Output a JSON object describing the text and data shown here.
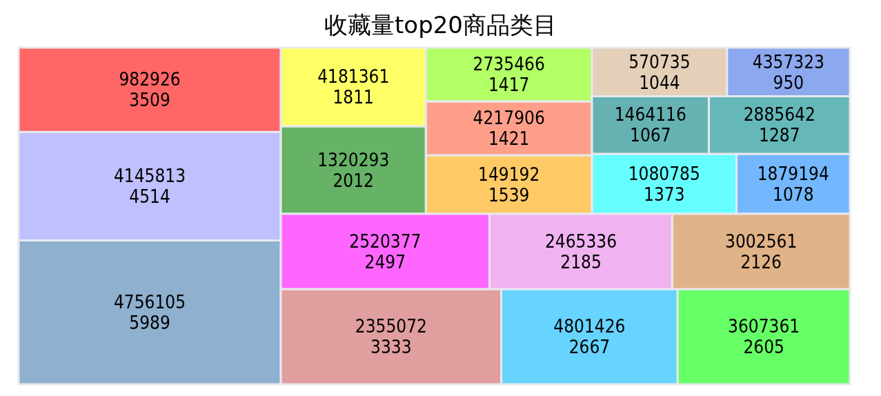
{
  "chart_data": {
    "type": "other",
    "title": "收藏量top20商品类目",
    "categories": [
      "4756105",
      "4145813",
      "982926",
      "2355072",
      "4801426",
      "3607361",
      "2520377",
      "2465336",
      "3002561",
      "1320293",
      "4181361",
      "149192",
      "4217906",
      "2735466",
      "1080785",
      "1879194",
      "1464116",
      "2885642",
      "570735",
      "4357323"
    ],
    "values": [
      5989,
      4514,
      3509,
      3333,
      2667,
      2605,
      2497,
      2185,
      2126,
      2012,
      1811,
      1539,
      1421,
      1417,
      1373,
      1078,
      1067,
      1287,
      1044,
      950
    ],
    "colors": [
      "#8fb0cf",
      "#c0c0ff",
      "#ff6666",
      "#e09e9e",
      "#66d4ff",
      "#66ff66",
      "#ff66ff",
      "#f0b2f0",
      "#e0b287",
      "#66b266",
      "#ffff66",
      "#ffc966",
      "#ff9f8a",
      "#b2ff66",
      "#66ffff",
      "#73b8ff",
      "#66b2b2",
      "#66b8b8",
      "#e4d0b8",
      "#8ca8ee"
    ],
    "data_labels": true
  }
}
